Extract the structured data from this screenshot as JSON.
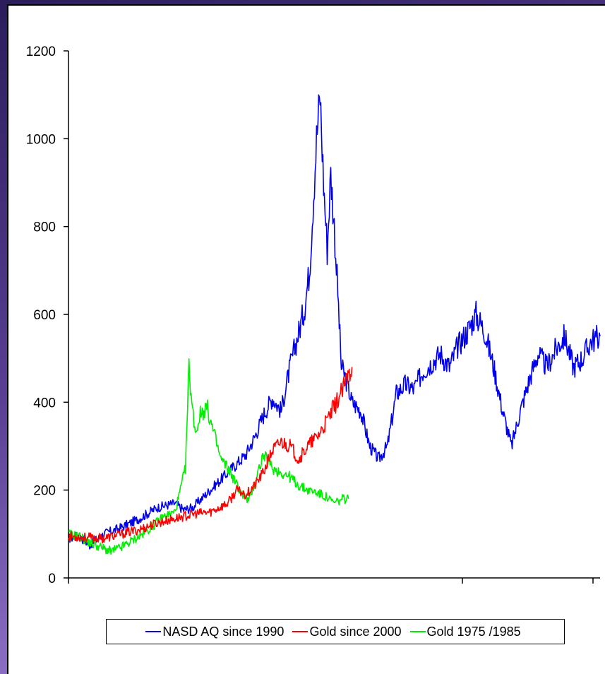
{
  "chart_data": {
    "type": "line",
    "title": "",
    "xlabel": "",
    "ylabel": "",
    "ylim": [
      0,
      1200
    ],
    "yticks": [
      0,
      200,
      400,
      600,
      800,
      1000,
      1200
    ],
    "ytick_labels": [
      "0",
      "200",
      "400",
      "600",
      "800",
      "1000",
      "1200"
    ],
    "xlim": [
      0,
      3000
    ],
    "xaxis_labels": "none",
    "grid": false,
    "legend_position": "bottom",
    "series": [
      {
        "name": "NASD AQ since 1990",
        "color": "#0000ee",
        "x": [
          0,
          60,
          120,
          200,
          300,
          400,
          500,
          600,
          650,
          700,
          800,
          900,
          1000,
          1050,
          1100,
          1150,
          1200,
          1250,
          1300,
          1330,
          1360,
          1380,
          1400,
          1420,
          1440,
          1460,
          1480,
          1500,
          1520,
          1540,
          1560,
          1580,
          1600,
          1650,
          1700,
          1750,
          1800,
          1850,
          1900,
          1950,
          2000,
          2050,
          2100,
          2150,
          2200,
          2250,
          2300,
          2350,
          2400,
          2450,
          2500,
          2550,
          2600,
          2650,
          2700,
          2750,
          2800,
          2850,
          2900,
          2950,
          3000
        ],
        "y": [
          90,
          95,
          75,
          100,
          115,
          135,
          160,
          170,
          155,
          160,
          200,
          240,
          280,
          320,
          370,
          410,
          380,
          480,
          560,
          610,
          700,
          850,
          1000,
          1100,
          900,
          750,
          920,
          800,
          650,
          480,
          460,
          430,
          400,
          380,
          300,
          270,
          300,
          420,
          440,
          430,
          470,
          490,
          510,
          480,
          530,
          560,
          600,
          560,
          480,
          380,
          300,
          380,
          450,
          510,
          480,
          520,
          550,
          480,
          500,
          540,
          550
        ]
      },
      {
        "name": "Gold since 2000",
        "color": "#ff0000",
        "x": [
          0,
          100,
          200,
          300,
          400,
          500,
          600,
          700,
          800,
          900,
          950,
          1000,
          1050,
          1100,
          1150,
          1200,
          1250,
          1300,
          1350,
          1400,
          1450,
          1500,
          1550,
          1600
        ],
        "y": [
          95,
          92,
          90,
          100,
          110,
          125,
          135,
          145,
          150,
          170,
          200,
          190,
          210,
          240,
          290,
          310,
          300,
          270,
          300,
          320,
          350,
          390,
          430,
          480
        ]
      },
      {
        "name": "Gold 1975 /1985",
        "color": "#00ee00",
        "x": [
          0,
          60,
          120,
          180,
          240,
          300,
          360,
          420,
          480,
          540,
          600,
          620,
          660,
          680,
          700,
          720,
          740,
          780,
          820,
          860,
          900,
          940,
          980,
          1020,
          1060,
          1100,
          1150,
          1200,
          1250,
          1300,
          1350,
          1400,
          1450,
          1500,
          1550,
          1580
        ],
        "y": [
          100,
          95,
          80,
          70,
          60,
          70,
          85,
          100,
          120,
          140,
          150,
          180,
          250,
          480,
          380,
          330,
          370,
          390,
          330,
          270,
          250,
          220,
          190,
          175,
          230,
          280,
          250,
          240,
          230,
          210,
          200,
          195,
          185,
          170,
          180,
          180
        ]
      }
    ]
  }
}
